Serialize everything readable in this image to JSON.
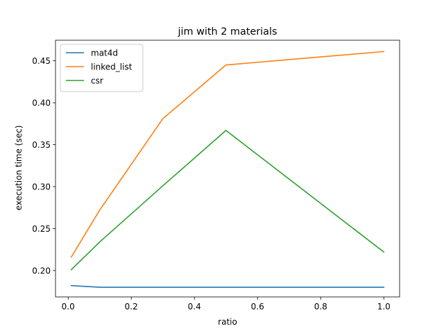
{
  "chart_data": {
    "type": "line",
    "title": "jim with 2 materials",
    "xlabel": "ratio",
    "ylabel": "execution time (sec)",
    "xlim": [
      -0.04,
      1.05
    ],
    "ylim": [
      0.1685,
      0.4745
    ],
    "xticks": [
      0.0,
      0.2,
      0.4,
      0.6,
      0.8,
      1.0
    ],
    "xtick_labels": [
      "0.0",
      "0.2",
      "0.4",
      "0.6",
      "0.8",
      "1.0"
    ],
    "yticks": [
      0.2,
      0.25,
      0.3,
      0.35,
      0.4,
      0.45
    ],
    "ytick_labels": [
      "0.20",
      "0.25",
      "0.30",
      "0.35",
      "0.40",
      "0.45"
    ],
    "grid": false,
    "legend_position": "upper-left",
    "series": [
      {
        "name": "mat4d",
        "color": "#1f77b4",
        "x": [
          0.01,
          0.1,
          0.3,
          0.5,
          1.0
        ],
        "y": [
          0.182,
          0.18,
          0.18,
          0.18,
          0.18
        ]
      },
      {
        "name": "linked_list",
        "color": "#ff7f0e",
        "x": [
          0.01,
          0.1,
          0.3,
          0.5,
          1.0
        ],
        "y": [
          0.216,
          0.272,
          0.381,
          0.445,
          0.461
        ]
      },
      {
        "name": "csr",
        "color": "#2ca02c",
        "x": [
          0.01,
          0.1,
          0.3,
          0.5,
          1.0
        ],
        "y": [
          0.201,
          0.234,
          0.301,
          0.367,
          0.222
        ]
      }
    ]
  }
}
